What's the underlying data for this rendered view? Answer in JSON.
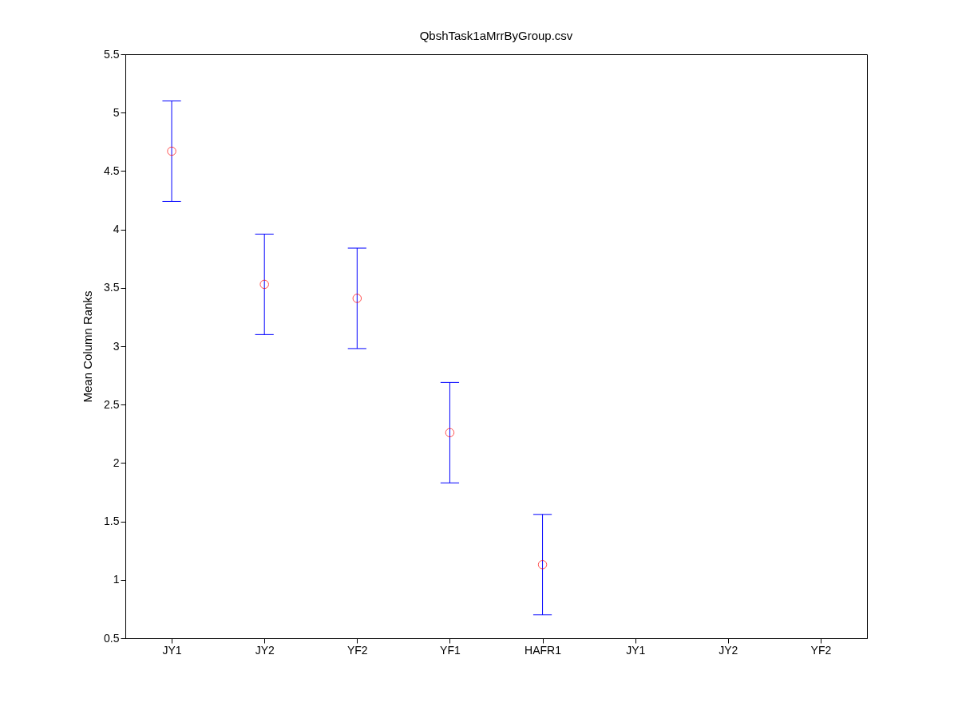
{
  "chart_data": {
    "type": "scatter",
    "title": "QbshTask1aMrrByGroup.csv",
    "ylabel": "Mean Column Ranks",
    "categories": [
      "JY1",
      "JY2",
      "YF2",
      "YF1",
      "HAFR1",
      "JY1",
      "JY2",
      "YF2"
    ],
    "series": [
      {
        "color": "#ff0000",
        "values": [
          4.67,
          3.53,
          3.41,
          2.26,
          1.13,
          null,
          null,
          null
        ],
        "errors": [
          0.43,
          0.43,
          0.43,
          0.43,
          0.43,
          null,
          null,
          null
        ]
      }
    ],
    "ylim": [
      0.5,
      5.5
    ],
    "yticks": [
      0.5,
      1,
      1.5,
      2,
      2.5,
      3,
      3.5,
      4,
      4.5,
      5,
      5.5
    ],
    "marker": "circle"
  }
}
